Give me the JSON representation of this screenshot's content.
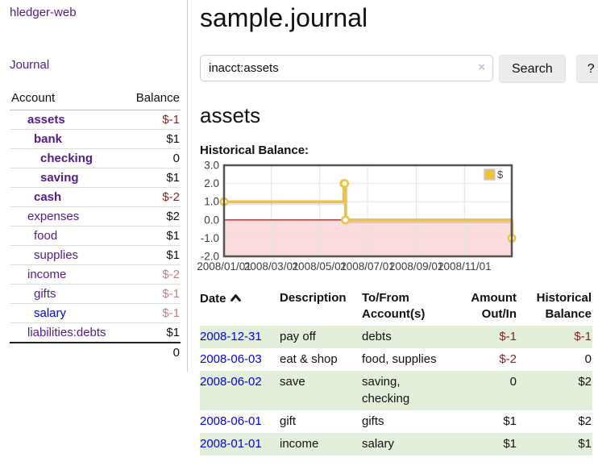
{
  "colors": {
    "link_purple": "#551a8b",
    "link_blue": "#0000ee",
    "negative_strong": "#8b1e1e",
    "negative_soft": "#c2807e",
    "row_green": "#e3efdb",
    "chart_series": "#edc240",
    "chart_border": "#545454",
    "chart_zero_line": "#8b0000",
    "chart_negative_region": "#fadcdc"
  },
  "sidebar": {
    "app_title": "hledger-web",
    "journal_link": "Journal",
    "table": {
      "account_header": "Account",
      "balance_header": "Balance"
    },
    "accounts": [
      {
        "name": "assets",
        "balance": "$-1",
        "depth": 1,
        "bold": true,
        "balance_tone": "neg-strong"
      },
      {
        "name": "bank",
        "balance": "$1",
        "depth": 2,
        "bold": true,
        "balance_tone": ""
      },
      {
        "name": "checking",
        "balance": "0",
        "depth": 3,
        "bold": true,
        "balance_tone": ""
      },
      {
        "name": "saving",
        "balance": "$1",
        "depth": 3,
        "bold": true,
        "balance_tone": ""
      },
      {
        "name": "cash",
        "balance": "$-2",
        "depth": 2,
        "bold": true,
        "balance_tone": "neg-strong"
      },
      {
        "name": "expenses",
        "balance": "$2",
        "depth": 1,
        "bold": false,
        "balance_tone": ""
      },
      {
        "name": "food",
        "balance": "$1",
        "depth": 2,
        "bold": false,
        "balance_tone": ""
      },
      {
        "name": "supplies",
        "balance": "$1",
        "depth": 2,
        "bold": false,
        "balance_tone": ""
      },
      {
        "name": "income",
        "balance": "$-2",
        "depth": 1,
        "bold": false,
        "balance_tone": "neg-soft"
      },
      {
        "name": "gifts",
        "balance": "$-1",
        "depth": 2,
        "bold": false,
        "balance_tone": "neg-soft"
      },
      {
        "name": "salary",
        "balance": "$-1",
        "depth": 2,
        "bold": false,
        "balance_tone": "neg-soft",
        "link_blue": true
      },
      {
        "name": "liabilities:debts",
        "balance": "$1",
        "depth": 1,
        "bold": false,
        "balance_tone": ""
      }
    ],
    "total": "0"
  },
  "main": {
    "title": "sample.journal",
    "search": {
      "value": "inacct:assets",
      "clear_icon": "×",
      "button_label": "Search",
      "help_label": "?"
    },
    "account_heading": "assets",
    "chart_title": "Historical Balance:"
  },
  "chart_data": {
    "type": "line",
    "step": true,
    "title": "Historical Balance:",
    "xlabel": "",
    "ylabel": "",
    "ylim": [
      -2,
      3
    ],
    "yticks": [
      "3.0",
      "2.0",
      "1.0",
      "0.0",
      "-1.0",
      "-2.0"
    ],
    "xrange": [
      "2008-01-01",
      "2008-12-31"
    ],
    "xticks": [
      "2008/01/01",
      "2008/03/01",
      "2008/05/01",
      "2008/07/01",
      "2008/09/01",
      "2008/11/01"
    ],
    "grid": true,
    "legend_position": "top-right",
    "series": [
      {
        "name": "$",
        "points": [
          [
            "2008-01-01",
            1
          ],
          [
            "2008-06-01",
            2
          ],
          [
            "2008-06-02",
            2
          ],
          [
            "2008-06-03",
            0
          ],
          [
            "2008-12-31",
            -1
          ]
        ]
      }
    ]
  },
  "register": {
    "headers": {
      "date": "Date",
      "description": "Description",
      "tofrom": "To/From Account(s)",
      "amount": "Amount Out/In",
      "balance": "Historical Balance"
    },
    "rows": [
      {
        "date": "2008-12-31",
        "description": "pay off",
        "tofrom": "debts",
        "amount": "$-1",
        "amount_negative": true,
        "balance": "$-1",
        "balance_negative": true
      },
      {
        "date": "2008-06-03",
        "description": "eat & shop",
        "tofrom": "food, supplies",
        "amount": "$-2",
        "amount_negative": true,
        "balance": "0",
        "balance_negative": false
      },
      {
        "date": "2008-06-02",
        "description": "save",
        "tofrom": "saving, checking",
        "amount": "0",
        "amount_negative": false,
        "balance": "$2",
        "balance_negative": false
      },
      {
        "date": "2008-06-01",
        "description": "gift",
        "tofrom": "gifts",
        "amount": "$1",
        "amount_negative": false,
        "balance": "$2",
        "balance_negative": false
      },
      {
        "date": "2008-01-01",
        "description": "income",
        "tofrom": "salary",
        "amount": "$1",
        "amount_negative": false,
        "balance": "$1",
        "balance_negative": false
      }
    ]
  }
}
